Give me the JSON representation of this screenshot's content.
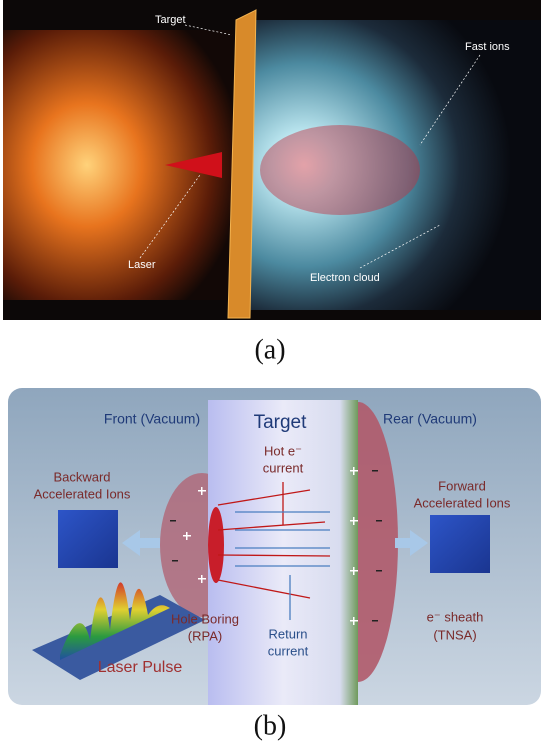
{
  "panel_a": {
    "labels": {
      "target": "Target",
      "fast_ions": "Fast ions",
      "laser": "Laser",
      "electron_cloud": "Electron cloud"
    },
    "caption": "(a)"
  },
  "panel_b": {
    "front": "Front (Vacuum)",
    "target": "Target",
    "rear": "Rear (Vacuum)",
    "hot_current": [
      "Hot e⁻",
      "current"
    ],
    "backward": [
      "Backward",
      "Accelerated Ions"
    ],
    "forward": [
      "Forward",
      "Accelerated Ions"
    ],
    "hole_boring": [
      "Hole Boring",
      "(RPA)"
    ],
    "return_current": [
      "Return",
      "current"
    ],
    "sheath": [
      "e⁻ sheath",
      "(TNSA)"
    ],
    "laser_pulse": "Laser Pulse",
    "caption": "(b)"
  }
}
